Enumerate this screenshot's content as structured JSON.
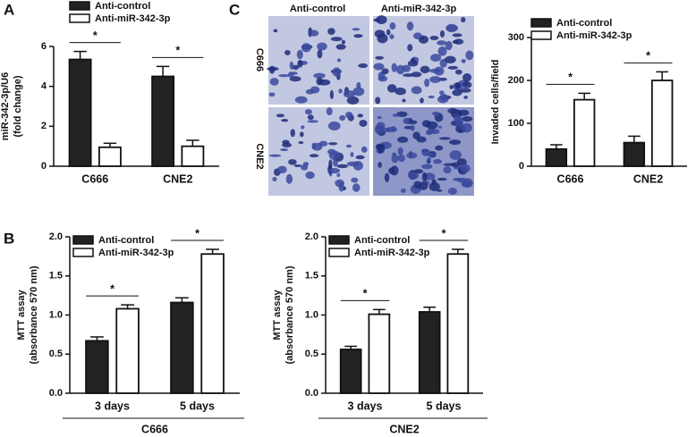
{
  "panels": [
    "A",
    "B",
    "C"
  ],
  "image_grid": {
    "columns": [
      "Anti-control",
      "Anti-miR-342-3p"
    ],
    "rows": [
      "C666",
      "CNE2"
    ]
  },
  "chart_data": [
    {
      "type": "bar",
      "panel": "A",
      "ylabel": [
        "miR-342-3p/U6",
        "(fold change)"
      ],
      "categories": [
        "C666",
        "CNE2"
      ],
      "series": [
        {
          "name": "Anti-control",
          "color": "#222222",
          "values": [
            5.35,
            4.5
          ],
          "errors": [
            0.4,
            0.5
          ]
        },
        {
          "name": "Anti-miR-342-3p",
          "color": "#ffffff",
          "values": [
            0.95,
            1.0
          ],
          "errors": [
            0.2,
            0.3
          ]
        }
      ],
      "ylim": [
        0,
        6
      ],
      "yticks": [
        0,
        2,
        4,
        6
      ],
      "annotations": [
        "*",
        "*"
      ]
    },
    {
      "type": "bar",
      "panel": "C",
      "ylabel": [
        "Invaded cells/field"
      ],
      "categories": [
        "C666",
        "CNE2"
      ],
      "series": [
        {
          "name": "Anti-control",
          "color": "#222222",
          "values": [
            40,
            55
          ],
          "errors": [
            10,
            15
          ]
        },
        {
          "name": "Anti-miR-342-3p",
          "color": "#ffffff",
          "values": [
            155,
            200
          ],
          "errors": [
            15,
            20
          ]
        }
      ],
      "ylim": [
        0,
        300
      ],
      "yticks": [
        0,
        100,
        200,
        300
      ],
      "annotations": [
        "*",
        "*"
      ]
    },
    {
      "type": "bar",
      "ylabel": [
        "MTT assay",
        "(absorbance 570 nm)"
      ],
      "categories": [
        "3 days",
        "5 days"
      ],
      "xgroup": "C666",
      "series": [
        {
          "name": "Anti-control",
          "color": "#222222",
          "values": [
            0.67,
            1.16
          ],
          "errors": [
            0.05,
            0.06
          ]
        },
        {
          "name": "Anti-miR-342-3p",
          "color": "#ffffff",
          "values": [
            1.08,
            1.78
          ],
          "errors": [
            0.05,
            0.06
          ]
        }
      ],
      "ylim": [
        0,
        2
      ],
      "yticks": [
        {
          "value": 0,
          "label": "0.0"
        },
        0.5,
        {
          "value": 1,
          "label": "1.0"
        },
        1.5,
        {
          "value": 2,
          "label": "2.0"
        }
      ],
      "annotations": [
        "*",
        "*"
      ]
    },
    {
      "type": "bar",
      "ylabel": [
        "MTT assay",
        "(absorbance 570 nm)"
      ],
      "categories": [
        "3 days",
        "5 days"
      ],
      "xgroup": "CNE2",
      "series": [
        {
          "name": "Anti-control",
          "color": "#222222",
          "values": [
            0.56,
            1.04
          ],
          "errors": [
            0.04,
            0.06
          ]
        },
        {
          "name": "Anti-miR-342-3p",
          "color": "#ffffff",
          "values": [
            1.01,
            1.78
          ],
          "errors": [
            0.06,
            0.06
          ]
        }
      ],
      "ylim": [
        0,
        2
      ],
      "yticks": [
        {
          "value": 0,
          "label": "0.0"
        },
        0.5,
        {
          "value": 1,
          "label": "1.0"
        },
        1.5,
        {
          "value": 2,
          "label": "2.0"
        }
      ],
      "annotations": [
        "*",
        "*"
      ]
    }
  ]
}
